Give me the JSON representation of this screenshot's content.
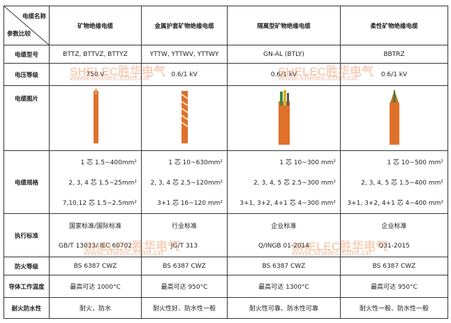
{
  "header": {
    "corner_top": "电缆名称",
    "corner_bottom": "参数比较",
    "columns": [
      "矿物绝缘电缆",
      "金属护套矿物绝缘电缆",
      "隔离型矿物绝缘电缆",
      "柔性矿物绝缘电缆"
    ]
  },
  "rows": {
    "model": {
      "label": "电缆型号",
      "values": [
        "BTTZ, BTTVZ, BTTYZ",
        "YTTW, YTTWV, YTTWY",
        "GN-AL (BTLY)",
        "BBTRZ"
      ]
    },
    "voltage": {
      "label": "电压等级",
      "values": [
        "750 V",
        "0.6/1 kV",
        "0.6/1 kV",
        "0.6/1 kV"
      ]
    },
    "image": {
      "label": "电缆图片"
    },
    "spec": {
      "label": "电缆规格",
      "values": [
        [
          "1 芯   1.5~400mm²",
          "2, 3, 4 芯   1.5~25mm²",
          "7,10,12 芯   1.5~2.5mm²"
        ],
        [
          "1 芯   10~630mm²",
          "2, 3, 4 芯   2.5~120mm²",
          "3+1 芯   16~120 mm²"
        ],
        [
          "1 芯   10~300 mm²",
          "2, 3, 4, 5 芯   2.5~300 mm²",
          "3+1, 3+2, 4+1 芯   4~300 mm²"
        ],
        [
          "1 芯   10~500 mm²",
          "2, 3, 4, 5 芯   1.5~400 mm²",
          "3+1, 3+2, 4+1 芯   4~400 mm²"
        ]
      ]
    },
    "standard": {
      "label": "执行标准",
      "values": [
        [
          "国家标准/国际标准",
          "GB/T 13033/ IEC 60702"
        ],
        [
          "行业标准",
          "JG/T 313"
        ],
        [
          "企业标准",
          "Q/INGB 01-2014"
        ],
        [
          "企业标准",
          "Q31-2015"
        ]
      ]
    },
    "fire": {
      "label": "防火等级",
      "values": [
        "BS 6387 CWZ",
        "BS 6387 CWZ",
        "BS 6387 CWZ",
        "BS 6387 CWZ"
      ]
    },
    "temp": {
      "label": "导体工作温度",
      "values": [
        "最高可达 1000°C",
        "最高可达 950°C",
        "最高可达 1300°C",
        "最高可达 950°C"
      ]
    },
    "resist": {
      "label": "耐火防水性",
      "values": [
        "耐火，防水",
        "耐火性好、防水性一般",
        "耐火性可靠、防水性可靠",
        "耐火性一般、防水性一般"
      ]
    }
  },
  "watermark": {
    "brand": "SHELEC胜华电气",
    "url": "www.shelec.com.cn"
  },
  "colors": {
    "cable": "#e0702a",
    "watermark": "#e6783c"
  }
}
